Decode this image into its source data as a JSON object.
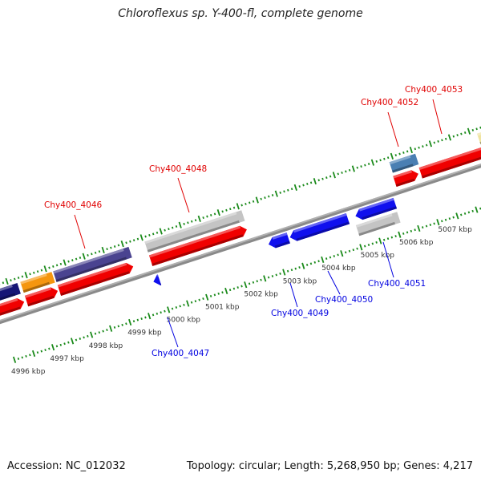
{
  "title": "Chloroflexus sp. Y-400-fl, complete genome",
  "footer": {
    "accession": "Accession: NC_012032",
    "summary": "Topology: circular; Length: 5,268,950 bp; Genes: 4,217"
  },
  "scale_labels": [
    "4996 kbp",
    "4997 kbp",
    "4998 kbp",
    "4999 kbp",
    "5000 kbp",
    "5001 kbp",
    "5002 kbp",
    "5003 kbp",
    "5004 kbp",
    "5005 kbp",
    "5006 kbp",
    "5007 kbp"
  ],
  "forward_labels": [
    "Chy400_4046",
    "Chy400_4048",
    "Chy400_4052",
    "Chy400_4053"
  ],
  "reverse_labels": [
    "Chy400_4047",
    "Chy400_4049",
    "Chy400_4050",
    "Chy400_4051"
  ],
  "colors": {
    "forward_label": "#e00000",
    "reverse_label": "#0000e0",
    "gene_red": "#f00000",
    "gene_blue": "#1010ee",
    "rna_gray": "#c4c4c4",
    "tick": "#1a8a1a",
    "backbone": "#8a8a8a"
  }
}
